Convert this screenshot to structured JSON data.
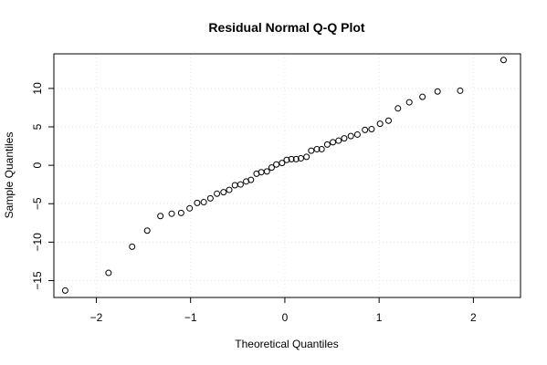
{
  "chart_data": {
    "type": "scatter",
    "title": "Residual Normal Q-Q Plot",
    "xlabel": "Theoretical Quantiles",
    "ylabel": "Sample Quantiles",
    "xlim": [
      -2.45,
      2.5
    ],
    "ylim": [
      -17.2,
      14.5
    ],
    "xticks": [
      -2,
      -1,
      0,
      1,
      2
    ],
    "xtick_labels": [
      "−2",
      "−1",
      "0",
      "1",
      "2"
    ],
    "yticks": [
      -15,
      -10,
      -5,
      0,
      5,
      10
    ],
    "ytick_labels": [
      "−15",
      "−10",
      "−5",
      "0",
      "5",
      "10"
    ],
    "grid": true,
    "points": [
      {
        "x": -2.33,
        "y": -16.3
      },
      {
        "x": -1.87,
        "y": -14.0
      },
      {
        "x": -1.62,
        "y": -10.6
      },
      {
        "x": -1.46,
        "y": -8.5
      },
      {
        "x": -1.32,
        "y": -6.6
      },
      {
        "x": -1.2,
        "y": -6.3
      },
      {
        "x": -1.1,
        "y": -6.2
      },
      {
        "x": -1.01,
        "y": -5.6
      },
      {
        "x": -0.93,
        "y": -4.9
      },
      {
        "x": -0.86,
        "y": -4.8
      },
      {
        "x": -0.79,
        "y": -4.3
      },
      {
        "x": -0.72,
        "y": -3.7
      },
      {
        "x": -0.65,
        "y": -3.5
      },
      {
        "x": -0.59,
        "y": -3.2
      },
      {
        "x": -0.53,
        "y": -2.6
      },
      {
        "x": -0.47,
        "y": -2.5
      },
      {
        "x": -0.41,
        "y": -2.1
      },
      {
        "x": -0.36,
        "y": -1.9
      },
      {
        "x": -0.3,
        "y": -1.1
      },
      {
        "x": -0.25,
        "y": -0.9
      },
      {
        "x": -0.19,
        "y": -0.8
      },
      {
        "x": -0.14,
        "y": -0.3
      },
      {
        "x": -0.09,
        "y": 0.1
      },
      {
        "x": -0.03,
        "y": 0.3
      },
      {
        "x": 0.02,
        "y": 0.7
      },
      {
        "x": 0.07,
        "y": 0.8
      },
      {
        "x": 0.12,
        "y": 0.8
      },
      {
        "x": 0.17,
        "y": 0.9
      },
      {
        "x": 0.23,
        "y": 1.1
      },
      {
        "x": 0.28,
        "y": 1.9
      },
      {
        "x": 0.34,
        "y": 2.1
      },
      {
        "x": 0.39,
        "y": 2.1
      },
      {
        "x": 0.45,
        "y": 2.7
      },
      {
        "x": 0.51,
        "y": 3.0
      },
      {
        "x": 0.57,
        "y": 3.2
      },
      {
        "x": 0.63,
        "y": 3.5
      },
      {
        "x": 0.7,
        "y": 3.8
      },
      {
        "x": 0.77,
        "y": 4.0
      },
      {
        "x": 0.85,
        "y": 4.6
      },
      {
        "x": 0.92,
        "y": 4.7
      },
      {
        "x": 1.01,
        "y": 5.4
      },
      {
        "x": 1.1,
        "y": 5.8
      },
      {
        "x": 1.2,
        "y": 7.4
      },
      {
        "x": 1.32,
        "y": 8.2
      },
      {
        "x": 1.46,
        "y": 8.9
      },
      {
        "x": 1.62,
        "y": 9.6
      },
      {
        "x": 1.86,
        "y": 9.7
      },
      {
        "x": 2.32,
        "y": 13.7
      }
    ]
  }
}
